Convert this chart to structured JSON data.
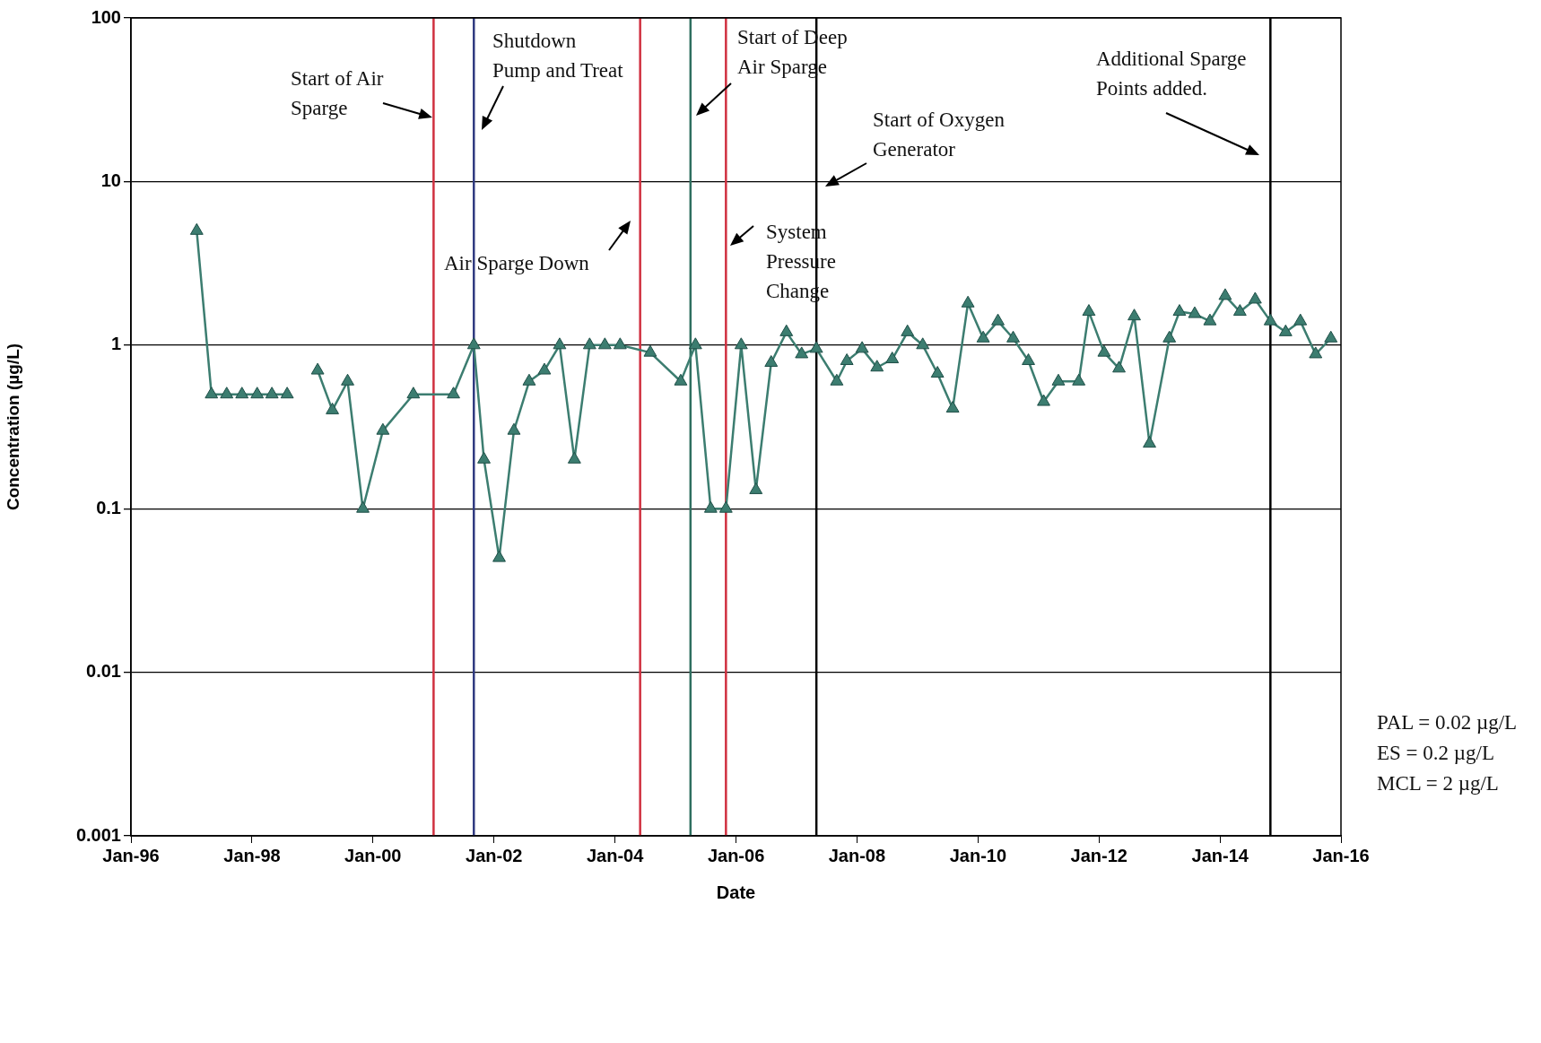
{
  "chart_data": {
    "type": "line",
    "xlabel": "Date",
    "ylabel": "Concentration (µg/L)",
    "log": "y",
    "grid": "y",
    "legend": false,
    "marker": "triangle",
    "line_style": "solid",
    "x": [
      "1997-02",
      "1997-05",
      "1997-08",
      "1997-11",
      "1998-02",
      "1998-05",
      "1998-08",
      "1998-11",
      "1999-02",
      "1999-05",
      "1999-08",
      "1999-11",
      "2000-03",
      "2000-09",
      "2001-05",
      "2001-09",
      "2001-11",
      "2002-02",
      "2002-05",
      "2002-08",
      "2002-11",
      "2003-02",
      "2003-05",
      "2003-08",
      "2003-11",
      "2004-02",
      "2004-08",
      "2005-02",
      "2005-05",
      "2005-08",
      "2005-11",
      "2006-02",
      "2006-05",
      "2006-08",
      "2006-11",
      "2007-02",
      "2007-05",
      "2007-09",
      "2007-11",
      "2008-02",
      "2008-05",
      "2008-08",
      "2008-11",
      "2009-02",
      "2009-05",
      "2009-08",
      "2009-11",
      "2010-02",
      "2010-05",
      "2010-08",
      "2010-11",
      "2011-02",
      "2011-05",
      "2011-09",
      "2011-11",
      "2012-02",
      "2012-05",
      "2012-08",
      "2012-11",
      "2013-03",
      "2013-05",
      "2013-08",
      "2013-11",
      "2014-02",
      "2014-05",
      "2014-08",
      "2014-11",
      "2015-02",
      "2015-05",
      "2015-08",
      "2015-11"
    ],
    "series": [
      {
        "color": "#3c7d70",
        "values": [
          5,
          0.5,
          0.5,
          0.5,
          0.5,
          0.5,
          0.5,
          null,
          0.7,
          0.4,
          0.6,
          0.1,
          0.3,
          0.5,
          0.5,
          1,
          0.2,
          0.05,
          0.3,
          0.6,
          0.7,
          1,
          0.2,
          1,
          1,
          1,
          0.9,
          0.6,
          1,
          0.1,
          0.1,
          1,
          0.13,
          0.78,
          1.2,
          0.88,
          0.95,
          0.6,
          0.8,
          0.95,
          0.73,
          0.82,
          1.2,
          1,
          0.67,
          0.41,
          1.8,
          1.1,
          1.4,
          1.1,
          0.8,
          0.45,
          0.6,
          0.6,
          1.6,
          0.9,
          0.72,
          1.5,
          0.25,
          1.1,
          1.6,
          1.55,
          1.4,
          2,
          1.6,
          1.9,
          1.4,
          1.2,
          1.4,
          0.88,
          1.1
        ]
      }
    ],
    "xlim": [
      "1996-01",
      "2016-01"
    ],
    "xticks": [
      {
        "value": "1996-01",
        "label": "Jan-96"
      },
      {
        "value": "1998-01",
        "label": "Jan-98"
      },
      {
        "value": "2000-01",
        "label": "Jan-00"
      },
      {
        "value": "2002-01",
        "label": "Jan-02"
      },
      {
        "value": "2004-01",
        "label": "Jan-04"
      },
      {
        "value": "2006-01",
        "label": "Jan-06"
      },
      {
        "value": "2008-01",
        "label": "Jan-08"
      },
      {
        "value": "2010-01",
        "label": "Jan-10"
      },
      {
        "value": "2012-01",
        "label": "Jan-12"
      },
      {
        "value": "2014-01",
        "label": "Jan-14"
      },
      {
        "value": "2016-01",
        "label": "Jan-16"
      }
    ],
    "ylim": [
      0.001,
      100
    ],
    "yticks": [
      0.001,
      0.01,
      0.1,
      1,
      10,
      100
    ],
    "ref_lines": [
      {
        "axis": "x",
        "value": "2001-01",
        "label": "Start of Air Sparge",
        "color": "#d03040"
      },
      {
        "axis": "x",
        "value": "2001-09",
        "label": "Shutdown Pump and Treat",
        "color": "#303a80"
      },
      {
        "axis": "x",
        "value": "2004-06",
        "label": "Air Sparge Down",
        "color": "#d03040"
      },
      {
        "axis": "x",
        "value": "2005-04",
        "label": "Start of Deep Air Sparge",
        "color": "#2f6f60"
      },
      {
        "axis": "x",
        "value": "2005-11",
        "label": "System Pressure Change",
        "color": "#d03040"
      },
      {
        "axis": "x",
        "value": "2007-05",
        "label": "Start of Oxygen Generator",
        "color": "#000000"
      },
      {
        "axis": "x",
        "value": "2014-11",
        "label": "Additional Sparge Points added.",
        "color": "#000000"
      }
    ],
    "annotations": [
      "PAL = 0.02 µg/L",
      "ES = 0.2 µg/L",
      "MCL = 2 µg/L"
    ]
  }
}
